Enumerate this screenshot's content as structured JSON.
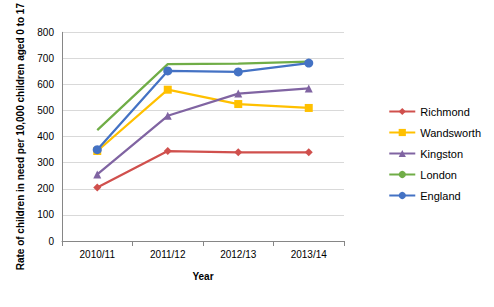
{
  "chart_data": {
    "type": "line",
    "x_label": "Year",
    "y_label": "Rate of children in need per 10,000 children aged 0 to 17",
    "categories": [
      "2010/11",
      "2011/12",
      "2012/13",
      "2013/14"
    ],
    "series": [
      {
        "name": "Richmond",
        "color": "#D0504D",
        "marker": "diamond",
        "values": [
          205,
          345,
          340,
          340
        ]
      },
      {
        "name": "Wandsworth",
        "color": "#FFC000",
        "marker": "square",
        "values": [
          345,
          580,
          525,
          510
        ]
      },
      {
        "name": "Kingston",
        "color": "#8064A2",
        "marker": "triangle",
        "values": [
          255,
          480,
          565,
          585
        ]
      },
      {
        "name": "London",
        "color": "#70AD47",
        "marker": "none",
        "values": [
          425,
          678,
          680,
          688
        ]
      },
      {
        "name": "England",
        "color": "#4472C4",
        "marker": "circle",
        "values": [
          350,
          652,
          648,
          682
        ]
      }
    ],
    "ylim": [
      0,
      800
    ],
    "yticks": [
      0,
      100,
      200,
      300,
      400,
      500,
      600,
      700,
      800
    ],
    "grid": true,
    "legend": "right"
  }
}
